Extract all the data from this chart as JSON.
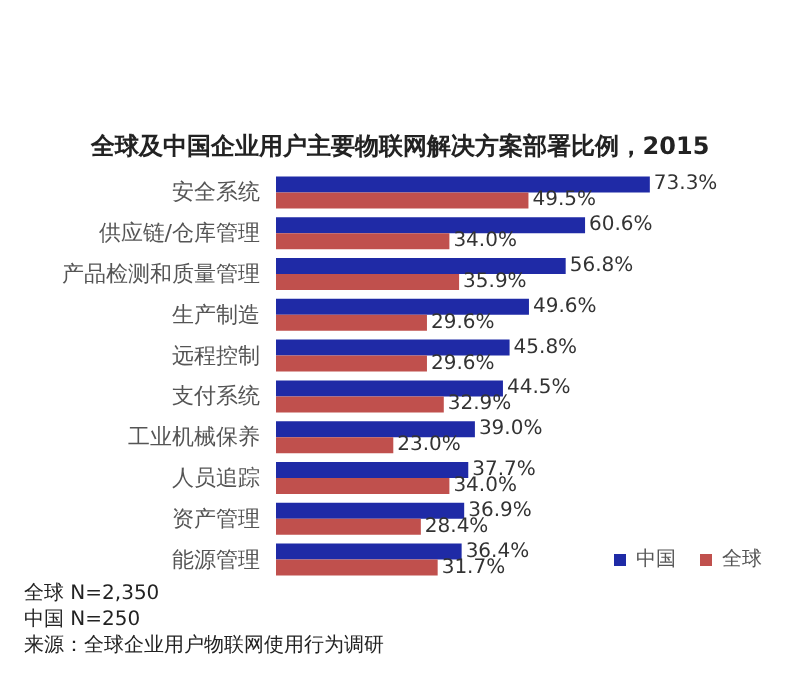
{
  "chart_data": {
    "type": "bar",
    "orientation": "horizontal",
    "title": "全球及中国企业用户主要物联网解决方案部署比例，2015",
    "categories": [
      "安全系统",
      "供应链/仓库管理",
      "产品检测和质量管理",
      "生产制造",
      "远程控制",
      "支付系统",
      "工业机械保养",
      "人员追踪",
      "资产管理",
      "能源管理"
    ],
    "series": [
      {
        "name": "中国",
        "color": "#1f2aa6",
        "values": [
          73.3,
          60.6,
          56.8,
          49.6,
          45.8,
          44.5,
          39.0,
          37.7,
          36.9,
          36.4
        ],
        "value_labels": [
          "73.3%",
          "60.6%",
          "56.8%",
          "49.6%",
          "45.8%",
          "44.5%",
          "39.0%",
          "37.7%",
          "36.9%",
          "36.4%"
        ]
      },
      {
        "name": "全球",
        "color": "#c0504d",
        "values": [
          49.5,
          34.0,
          35.9,
          29.6,
          29.6,
          32.9,
          23.0,
          34.0,
          28.4,
          31.7
        ],
        "value_labels": [
          "49.5%",
          "34.0%",
          "35.9%",
          "29.6%",
          "29.6%",
          "32.9%",
          "23.0%",
          "34.0%",
          "28.4%",
          "31.7%"
        ]
      }
    ],
    "legend": "bottom right",
    "annotations": [
      "全球 N=2,350",
      "中国 N=250",
      "来源：全球企业用户物联网使用行为调研"
    ]
  }
}
